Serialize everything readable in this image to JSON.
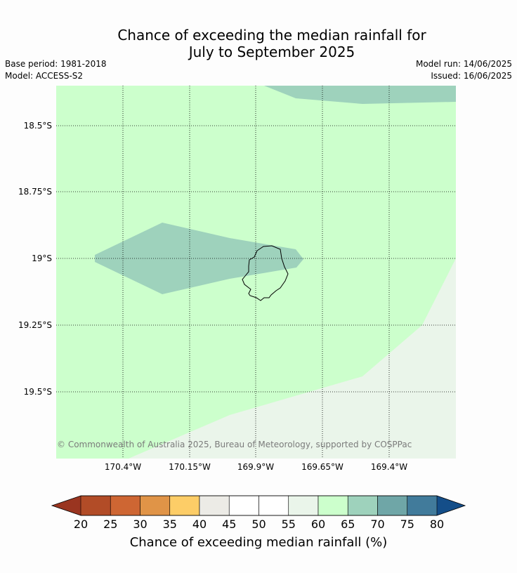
{
  "title_line1": "Chance of exceeding the median rainfall for",
  "title_line2": "July to September 2025",
  "base_period": "Base period: 1981-2018",
  "model": "Model: ACCESS-S2",
  "model_run": "Model run: 14/06/2025",
  "issued": "Issued: 16/06/2025",
  "map": {
    "longitude_labels": [
      "170.4°W",
      "170.15°W",
      "169.9°W",
      "169.65°W",
      "169.4°W"
    ],
    "latitude_labels": [
      "18.5°S",
      "18.75°S",
      "19°S",
      "19.25°S",
      "19.5°S"
    ],
    "copyright": "© Commonwealth of Australia 2025, Bureau of Meteorology, supported by COSPPac",
    "colors": {
      "band_60_65": "#ccffcc",
      "band_65_70": "#9ed2bc",
      "band_55_60": "#eaf5ea",
      "coastline": "#000000",
      "gridline": "#000000"
    }
  },
  "colorbar": {
    "title": "Chance of exceeding median rainfall (%)",
    "tick_labels": [
      "20",
      "25",
      "30",
      "35",
      "40",
      "45",
      "50",
      "55",
      "60",
      "65",
      "70",
      "75",
      "80"
    ],
    "under_color": "#9a3520",
    "over_color": "#144e89",
    "colors": [
      "#b24c27",
      "#ce6633",
      "#e09447",
      "#fdcd67",
      "#ecebe6",
      "#ffffff",
      "#ffffff",
      "#eaf5ea",
      "#ccffcc",
      "#9ed2bc",
      "#6fa6a7",
      "#417b9b"
    ]
  }
}
